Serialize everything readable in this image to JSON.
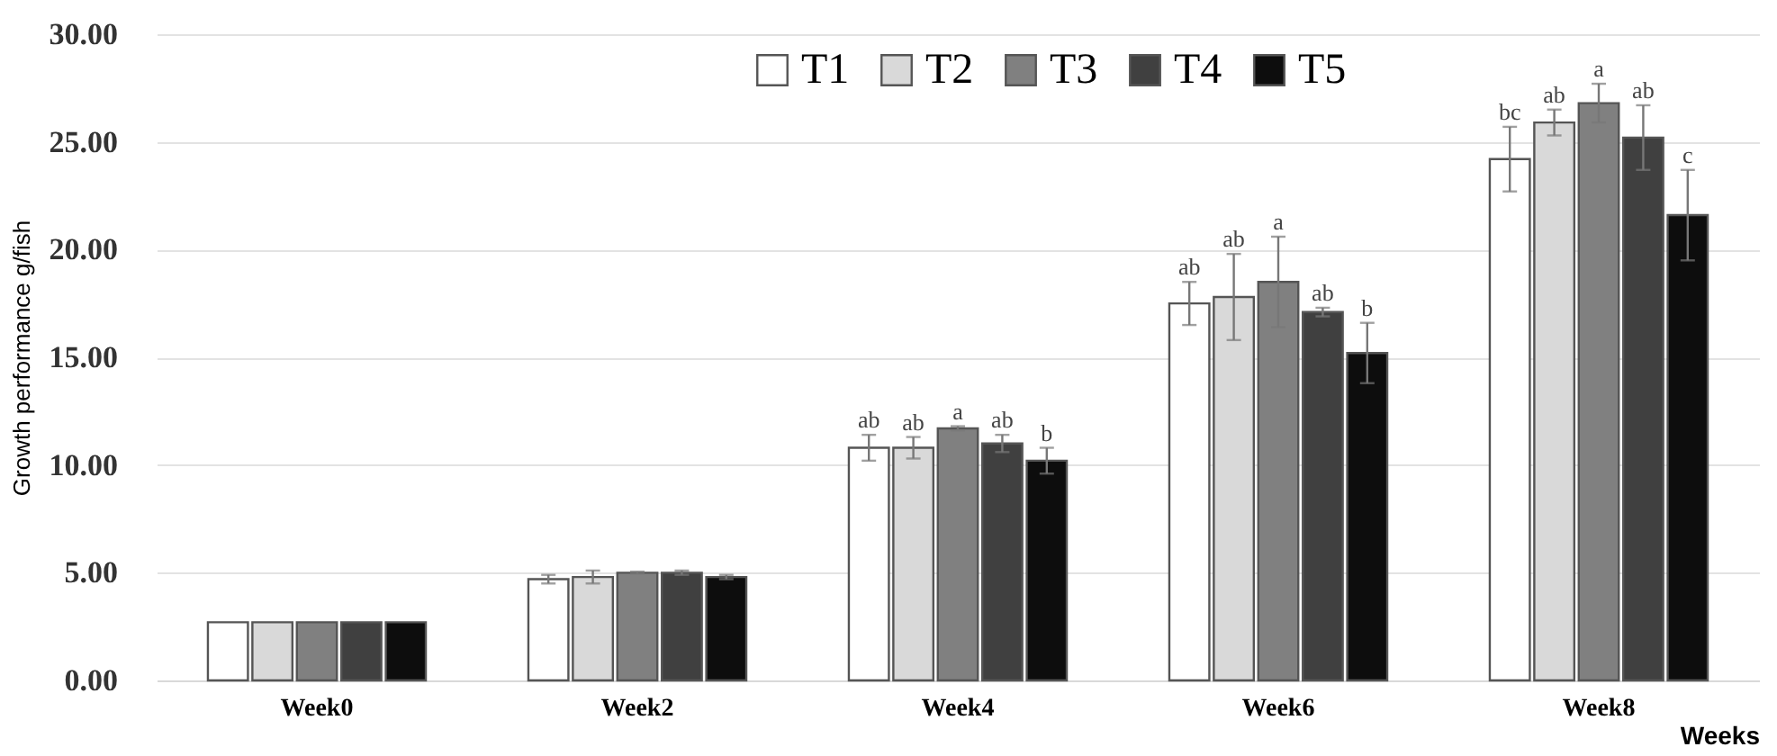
{
  "chart_data": {
    "type": "bar",
    "ylabel": "Growth performance g/fish",
    "xlabel": "Weeks",
    "categories": [
      "Week0",
      "Week2",
      "Week4",
      "Week6",
      "Week8"
    ],
    "series": [
      {
        "name": "T1",
        "color": "#ffffff",
        "values": [
          2.7,
          4.7,
          10.8,
          17.5,
          24.2
        ],
        "errors": [
          null,
          0.2,
          0.6,
          1.0,
          1.5
        ],
        "value_labels": [
          null,
          null,
          "ab",
          "ab",
          "bc"
        ]
      },
      {
        "name": "T2",
        "color": "#d9d9d9",
        "values": [
          2.7,
          4.8,
          10.8,
          17.8,
          25.9
        ],
        "errors": [
          null,
          0.3,
          0.5,
          2.0,
          0.6
        ],
        "value_labels": [
          null,
          null,
          "ab",
          "ab",
          "ab"
        ]
      },
      {
        "name": "T3",
        "color": "#808080",
        "values": [
          2.7,
          5.0,
          11.7,
          18.5,
          26.8
        ],
        "errors": [
          null,
          0.05,
          0.1,
          2.1,
          0.9
        ],
        "value_labels": [
          null,
          null,
          "a",
          "a",
          "a"
        ]
      },
      {
        "name": "T4",
        "color": "#404040",
        "values": [
          2.7,
          5.0,
          11.0,
          17.1,
          25.2
        ],
        "errors": [
          null,
          0.1,
          0.4,
          0.2,
          1.5
        ],
        "value_labels": [
          null,
          null,
          "ab",
          "ab",
          "ab"
        ]
      },
      {
        "name": "T5",
        "color": "#0d0d0d",
        "values": [
          2.7,
          4.8,
          10.2,
          15.2,
          21.6
        ],
        "errors": [
          null,
          0.1,
          0.6,
          1.4,
          2.1
        ],
        "value_labels": [
          null,
          null,
          "b",
          "b",
          "c"
        ]
      }
    ],
    "ylim": [
      0,
      30
    ],
    "yticks": [
      {
        "value": 0,
        "label": "0.00"
      },
      {
        "value": 5,
        "label": "5.00"
      },
      {
        "value": 10,
        "label": "10.00"
      },
      {
        "value": 15,
        "label": "15.00"
      },
      {
        "value": 20,
        "label": "20.00"
      },
      {
        "value": 25,
        "label": "25.00"
      },
      {
        "value": 30,
        "label": "30.00"
      }
    ],
    "grid": "y",
    "legend": "top right"
  }
}
